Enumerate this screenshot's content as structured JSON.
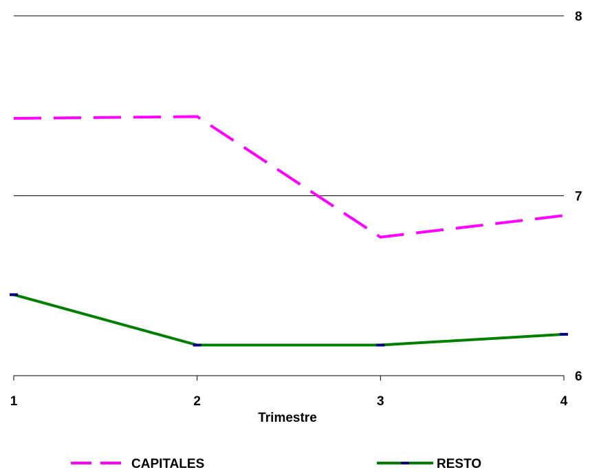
{
  "chart_data": {
    "type": "line",
    "categories": [
      "1",
      "2",
      "3",
      "4"
    ],
    "xlabel": "Trimestre",
    "ylabel": "",
    "ylim": [
      6,
      8
    ],
    "yticks": [
      "6",
      "7",
      "8"
    ],
    "grid": true,
    "y_axis_side": "right",
    "legend_position": "bottom",
    "series": [
      {
        "name": "CAPITALES",
        "values": [
          7.43,
          7.44,
          6.77,
          6.89
        ],
        "color": "#ff00ff",
        "style": "dashed"
      },
      {
        "name": "RESTO",
        "values": [
          6.45,
          6.17,
          6.17,
          6.23
        ],
        "color": "#008000",
        "marker_color": "#000080",
        "style": "solid"
      }
    ]
  }
}
